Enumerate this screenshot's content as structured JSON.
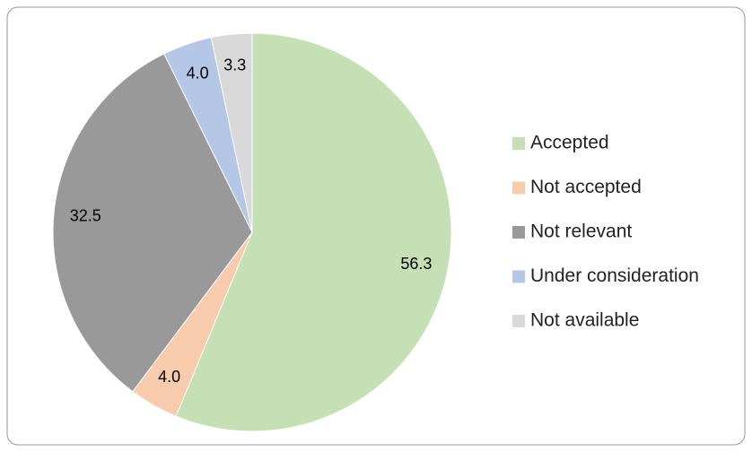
{
  "chart_data": {
    "type": "pie",
    "categories": [
      "Accepted",
      "Not accepted",
      "Not relevant",
      "Under consideration",
      "Not available"
    ],
    "values": [
      56.3,
      4.0,
      32.5,
      4.0,
      3.3
    ],
    "value_labels": [
      "56.3",
      "4.0",
      "32.5",
      "4.0",
      "3.3"
    ],
    "colors": [
      "#c5e0b4",
      "#f8cbad",
      "#999999",
      "#b4c7e7",
      "#d9d9d9"
    ],
    "legend": "right"
  }
}
